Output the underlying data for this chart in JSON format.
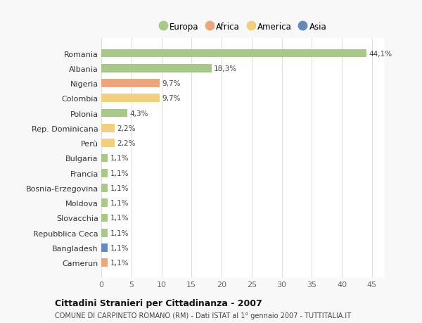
{
  "countries": [
    "Romania",
    "Albania",
    "Nigeria",
    "Colombia",
    "Polonia",
    "Rep. Dominicana",
    "Perù",
    "Bulgaria",
    "Francia",
    "Bosnia-Erzegovina",
    "Moldova",
    "Slovacchia",
    "Repubblica Ceca",
    "Bangladesh",
    "Camerun"
  ],
  "values": [
    44.1,
    18.3,
    9.7,
    9.7,
    4.3,
    2.2,
    2.2,
    1.1,
    1.1,
    1.1,
    1.1,
    1.1,
    1.1,
    1.1,
    1.1
  ],
  "labels": [
    "44,1%",
    "18,3%",
    "9,7%",
    "9,7%",
    "4,3%",
    "2,2%",
    "2,2%",
    "1,1%",
    "1,1%",
    "1,1%",
    "1,1%",
    "1,1%",
    "1,1%",
    "1,1%",
    "1,1%"
  ],
  "continents": [
    "Europa",
    "Europa",
    "Africa",
    "America",
    "Europa",
    "America",
    "America",
    "Europa",
    "Europa",
    "Europa",
    "Europa",
    "Europa",
    "Europa",
    "Asia",
    "Africa"
  ],
  "colors": {
    "Europa": "#a8c88a",
    "Africa": "#e8a87c",
    "America": "#f0d080",
    "Asia": "#6688bb"
  },
  "legend_order": [
    "Europa",
    "Africa",
    "America",
    "Asia"
  ],
  "title": "Cittadini Stranieri per Cittadinanza - 2007",
  "subtitle": "COMUNE DI CARPINETO ROMANO (RM) - Dati ISTAT al 1° gennaio 2007 - TUTTITALIA.IT",
  "xlim": [
    0,
    47
  ],
  "xticks": [
    0,
    5,
    10,
    15,
    20,
    25,
    30,
    35,
    40,
    45
  ],
  "background_color": "#f8f8f8",
  "bar_background": "#ffffff",
  "bar_height": 0.55,
  "label_fontsize": 7.5,
  "tick_fontsize": 8,
  "ytick_fontsize": 8
}
